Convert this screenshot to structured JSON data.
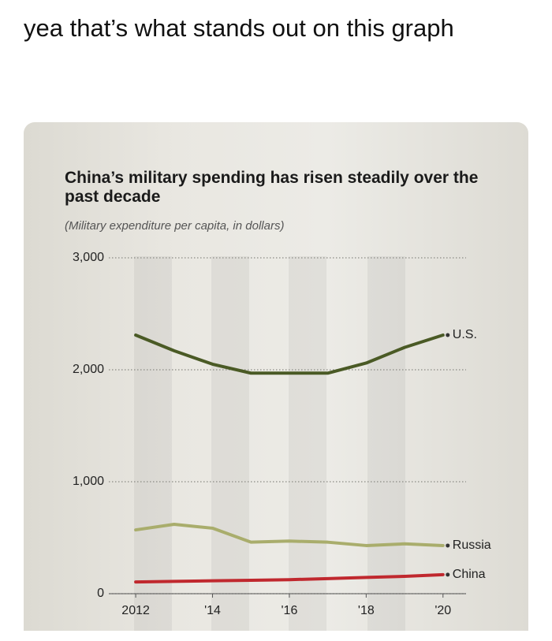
{
  "caption": "yea that’s what stands out on this graph",
  "chart_data": {
    "type": "line",
    "title": "China’s military spending has risen steadily over the past decade",
    "subtitle": "(Military expenditure per capita, in dollars)",
    "x": [
      2012,
      2013,
      2014,
      2015,
      2016,
      2017,
      2018,
      2019,
      2020
    ],
    "series": [
      {
        "name": "U.S.",
        "color": "#4a5a25",
        "values": [
          2310,
          2170,
          2050,
          1970,
          1970,
          1970,
          2060,
          2200,
          2310
        ]
      },
      {
        "name": "Russia",
        "color": "#a9ad6c",
        "values": [
          570,
          620,
          585,
          460,
          470,
          460,
          430,
          445,
          430
        ]
      },
      {
        "name": "China",
        "color": "#c0282e",
        "values": [
          105,
          110,
          115,
          120,
          125,
          135,
          145,
          155,
          170
        ]
      }
    ],
    "xlim": [
      2011.3,
      2020.6
    ],
    "xticks": [
      2012,
      {
        "value": 2014,
        "label": "'14"
      },
      {
        "value": 2016,
        "label": "'16"
      },
      {
        "value": 2018,
        "label": "'18"
      },
      {
        "value": 2020,
        "label": "'20"
      }
    ],
    "ylim": [
      0,
      3000
    ],
    "yticks": [
      0,
      {
        "value": 1000,
        "label": "1,000"
      },
      {
        "value": 2000,
        "label": "2,000"
      },
      {
        "value": 3000,
        "label": "3,000"
      }
    ],
    "grid": true
  }
}
